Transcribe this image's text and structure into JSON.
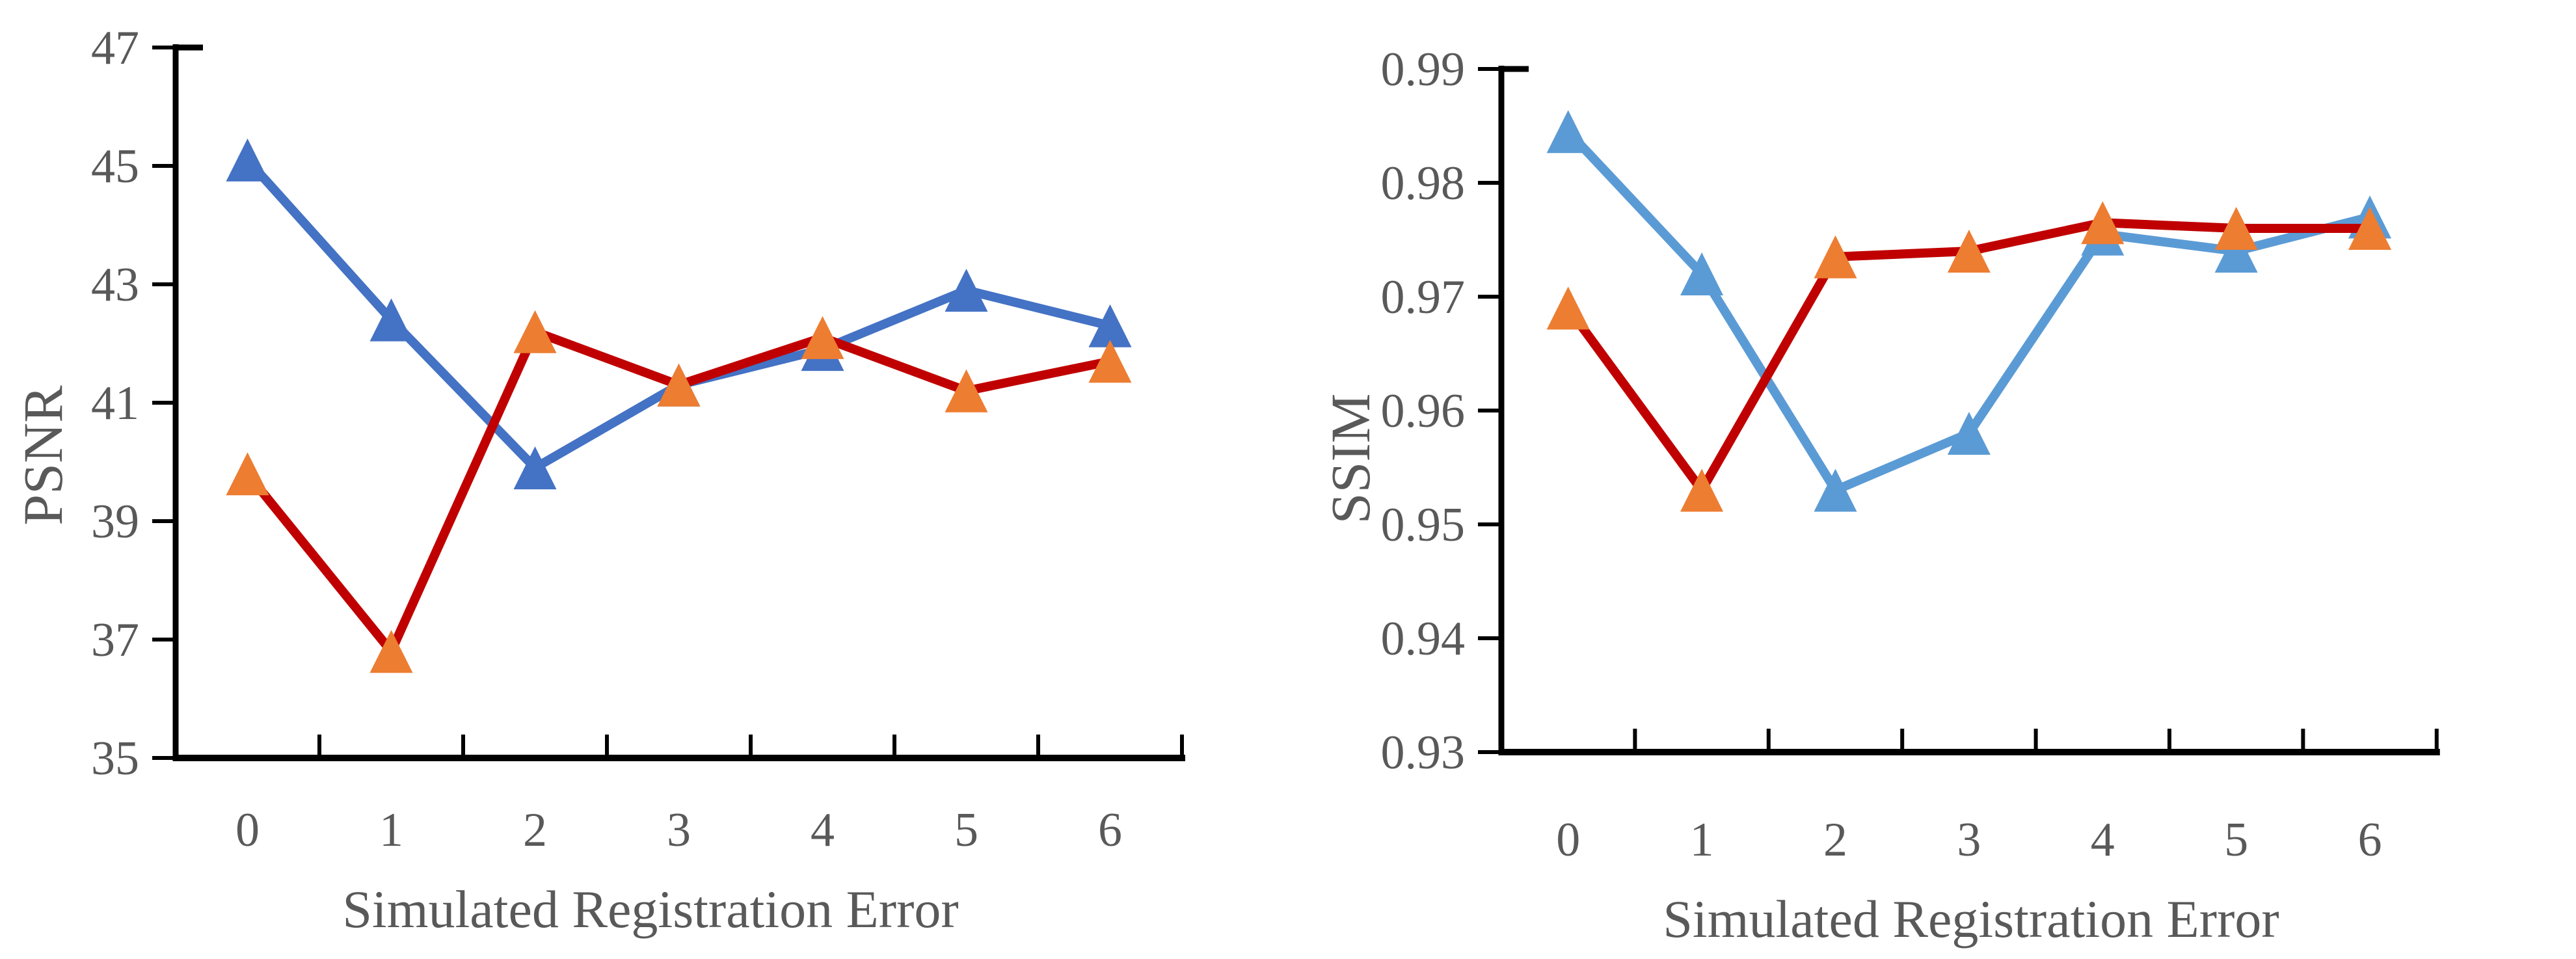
{
  "figure": {
    "background": "#ffffff",
    "text_color": "#595959",
    "axis_color": "#000000"
  },
  "chart_data": [
    {
      "id": "psnr",
      "type": "line",
      "title": "",
      "xlabel": "Simulated Registration Error",
      "ylabel": "PSNR",
      "categories": [
        "0",
        "1",
        "2",
        "3",
        "4",
        "5",
        "6"
      ],
      "x": [
        0,
        1,
        2,
        3,
        4,
        5,
        6
      ],
      "ylim": [
        35,
        47
      ],
      "y_tick_step": 2,
      "y_tick_labels": [
        "47",
        "45",
        "43",
        "41",
        "39",
        "37",
        "35"
      ],
      "grid": false,
      "legend": "none",
      "series": [
        {
          "name": "blue-series",
          "marker": "triangle",
          "line_color": "#4472C4",
          "marker_color": "#4472C4",
          "values": [
            45.1,
            42.4,
            39.9,
            41.3,
            41.9,
            42.9,
            42.3
          ]
        },
        {
          "name": "red-series",
          "marker": "triangle",
          "line_color": "#C00000",
          "marker_color": "#ED7D31",
          "values": [
            39.8,
            36.8,
            42.2,
            41.3,
            42.1,
            41.2,
            41.7
          ]
        }
      ]
    },
    {
      "id": "ssim",
      "type": "line",
      "title": "",
      "xlabel": "Simulated Registration Error",
      "ylabel": "SSIM",
      "categories": [
        "0",
        "1",
        "2",
        "3",
        "4",
        "5",
        "6"
      ],
      "x": [
        0,
        1,
        2,
        3,
        4,
        5,
        6
      ],
      "ylim": [
        0.93,
        0.99
      ],
      "y_tick_step": 0.01,
      "y_tick_labels": [
        "0.99",
        "0.98",
        "0.97",
        "0.96",
        "0.95",
        "0.94",
        "0.93"
      ],
      "grid": false,
      "legend": "none",
      "series": [
        {
          "name": "blue-series",
          "marker": "triangle",
          "line_color": "#5B9BD5",
          "marker_color": "#5B9BD5",
          "values": [
            0.9845,
            0.972,
            0.953,
            0.958,
            0.9755,
            0.974,
            0.977
          ]
        },
        {
          "name": "red-series",
          "marker": "triangle",
          "line_color": "#C00000",
          "marker_color": "#ED7D31",
          "values": [
            0.969,
            0.953,
            0.9735,
            0.974,
            0.9765,
            0.976,
            0.976
          ]
        }
      ]
    }
  ]
}
